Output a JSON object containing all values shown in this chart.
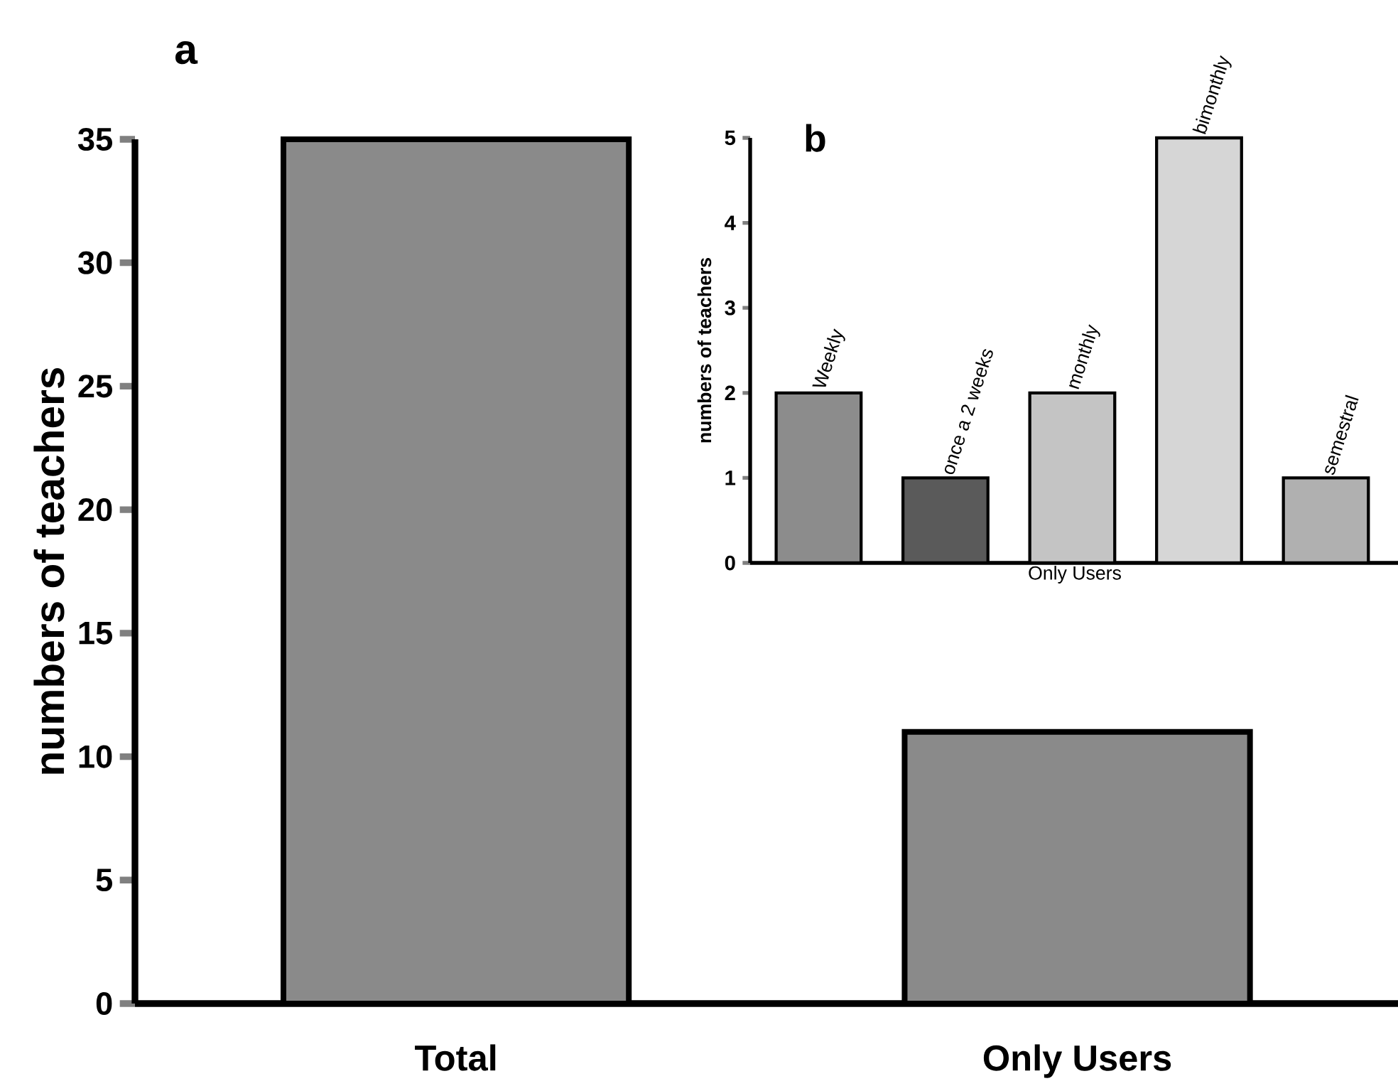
{
  "chart_data": [
    {
      "type": "bar",
      "title": "a",
      "ylabel": "numbers of teachers",
      "categories": [
        "Total",
        "Only Users"
      ],
      "values": [
        35,
        11
      ],
      "colors": [
        "#8a8a8a",
        "#8a8a8a"
      ],
      "ylim": [
        0,
        35
      ],
      "yticks": [
        0,
        5,
        10,
        15,
        20,
        25,
        30,
        35
      ]
    },
    {
      "type": "bar",
      "title": "b",
      "xlabel": "Only Users",
      "ylabel": "numbers of teachers",
      "categories": [
        "Weekly",
        "once a 2 weeks",
        "monthly",
        "bimonthly",
        "semestral"
      ],
      "values": [
        2,
        1,
        2,
        5,
        1
      ],
      "colors": [
        "#8c8c8c",
        "#5a5a5a",
        "#c4c4c4",
        "#d6d6d6",
        "#b0b0b0"
      ],
      "ylim": [
        0,
        5
      ],
      "yticks": [
        0,
        1,
        2,
        3,
        4,
        5
      ]
    }
  ]
}
